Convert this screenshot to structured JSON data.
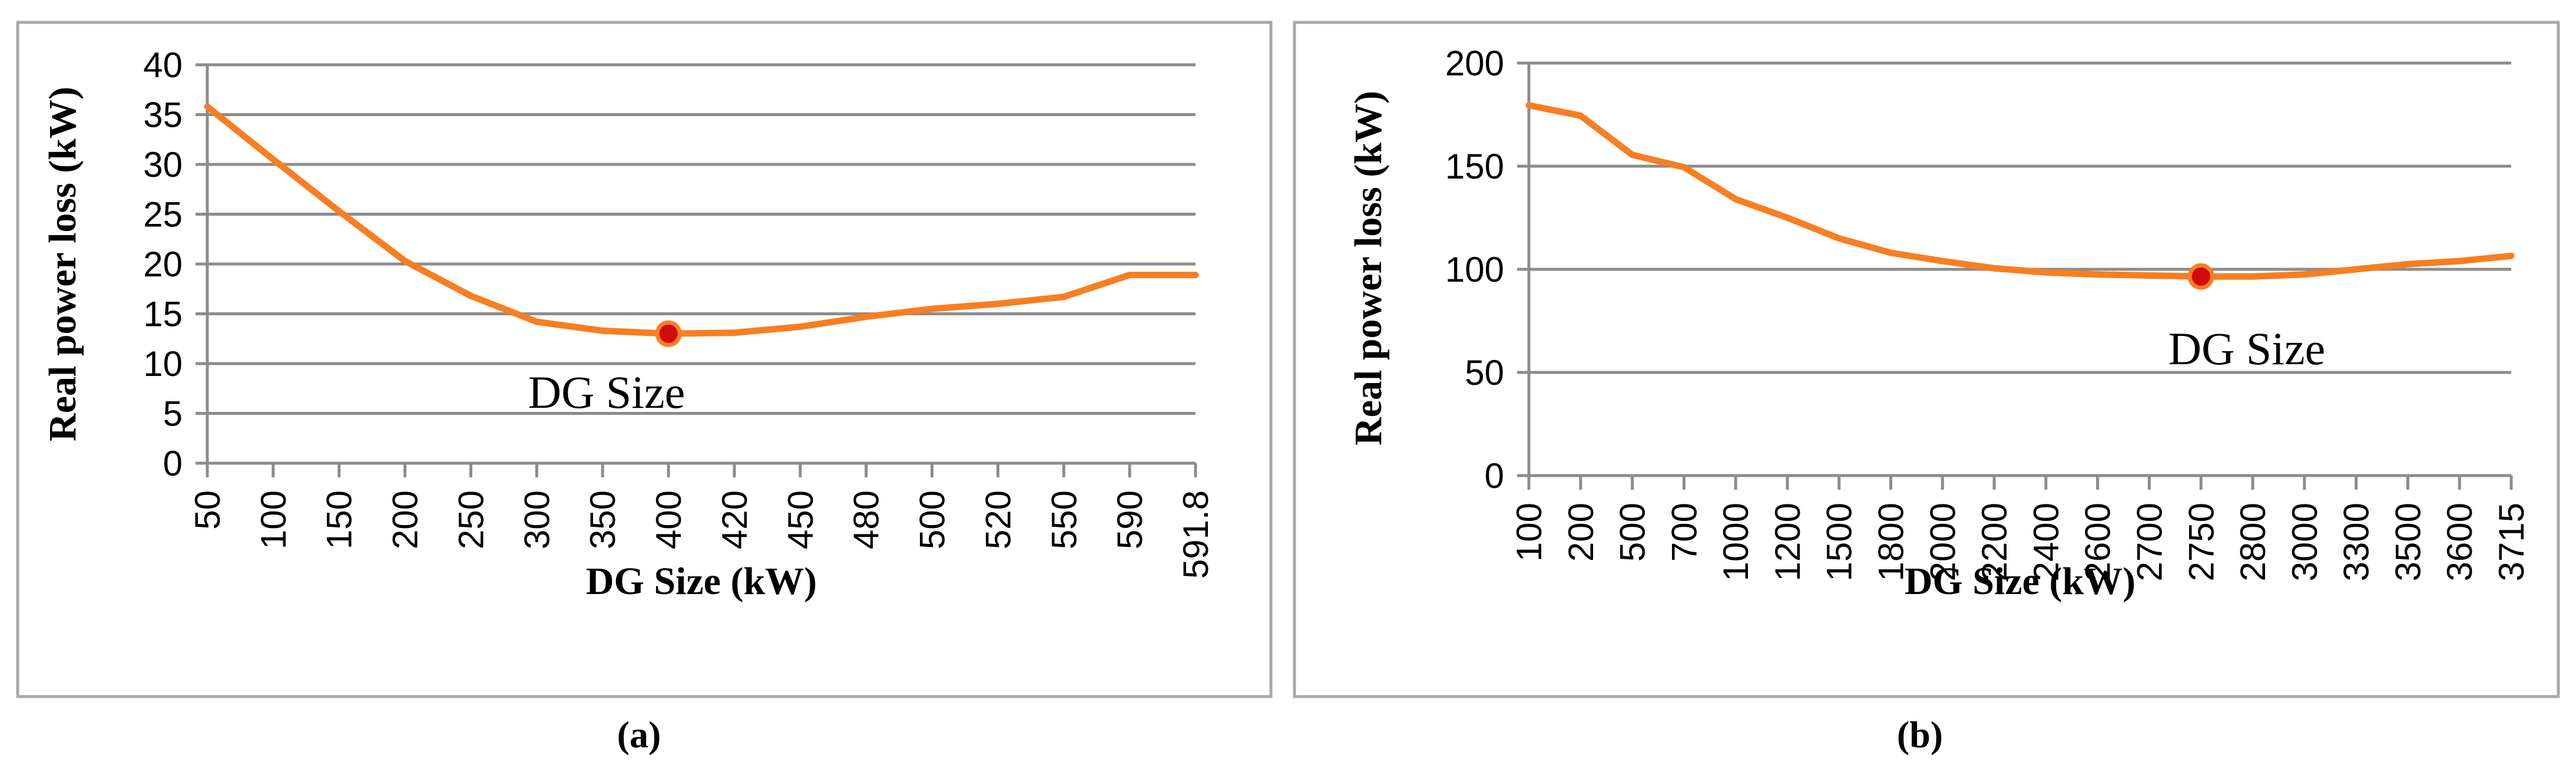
{
  "figure": {
    "panels": [
      {
        "caption": "(a)"
      },
      {
        "caption": "(b)"
      }
    ]
  },
  "colors": {
    "line": "#F87E22",
    "dot_fill": "#D10A0A",
    "dot_ring": "#F87E22",
    "grid": "#8C8C8C",
    "axis": "#8C8C8C",
    "border": "#A8A8A8",
    "text": "#000000"
  },
  "chart_data": [
    {
      "type": "line",
      "title": "",
      "xlabel": "DG Size (kW)",
      "ylabel": "Real power loss (kW)",
      "annotation": "DG Size",
      "legend": "none",
      "grid": "horizontal",
      "categories": [
        "50",
        "100",
        "150",
        "200",
        "250",
        "300",
        "350",
        "400",
        "420",
        "450",
        "480",
        "500",
        "520",
        "550",
        "590",
        "591.8"
      ],
      "values": [
        35.8,
        30.5,
        25.3,
        20.3,
        16.8,
        14.2,
        13.3,
        13.0,
        13.1,
        13.7,
        14.7,
        15.5,
        16.0,
        16.7,
        18.9,
        18.9
      ],
      "highlight": {
        "index": 7,
        "category": "400",
        "value": 13.0
      },
      "ylim": [
        0,
        40
      ],
      "yticks": [
        0,
        5,
        10,
        15,
        20,
        25,
        30,
        35,
        40
      ]
    },
    {
      "type": "line",
      "title": "",
      "xlabel": "DG Size (kW)",
      "ylabel": "Real power loss (kW)",
      "annotation": "DG Size",
      "legend": "none",
      "grid": "horizontal",
      "categories": [
        "100",
        "200",
        "500",
        "700",
        "1000",
        "1200",
        "1500",
        "1800",
        "2000",
        "2200",
        "2400",
        "2600",
        "2700",
        "2750",
        "2800",
        "3000",
        "3300",
        "3500",
        "3600",
        "3715"
      ],
      "values": [
        179.5,
        174.5,
        155.5,
        149.5,
        134,
        125,
        115,
        108,
        104,
        100.5,
        98.5,
        97.5,
        97,
        96.5,
        96.5,
        97.5,
        100,
        102.5,
        104,
        106.5
      ],
      "highlight": {
        "index": 13,
        "category": "2750",
        "value": 96.5
      },
      "ylim": [
        0,
        200
      ],
      "yticks": [
        0,
        50,
        100,
        150,
        200
      ]
    }
  ]
}
